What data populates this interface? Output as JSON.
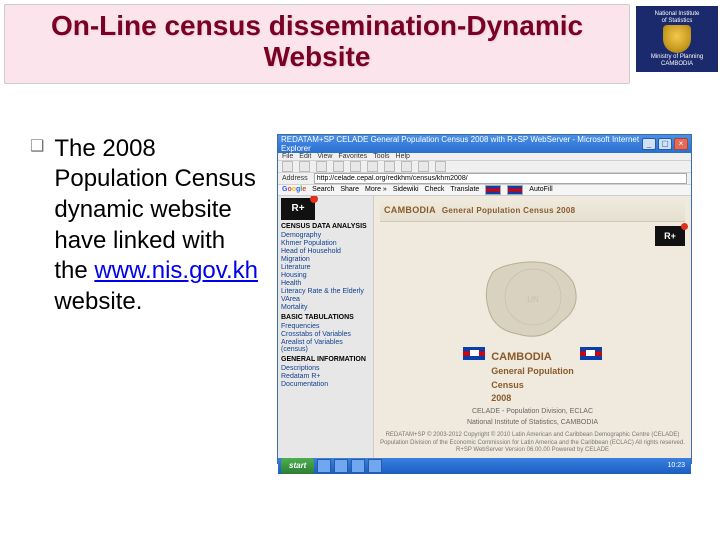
{
  "header": {
    "title": "On-Line census dissemination-Dynamic Website",
    "band_bg": "#fce4ec",
    "title_color": "#7a0026"
  },
  "badge": {
    "line1": "National Institute",
    "line2": "of Statistics",
    "line3": "Ministry of Planning",
    "line4": "CAMBODIA"
  },
  "bullet": {
    "marker": "❑",
    "text_before": "The 2008 Population Census dynamic website have linked with the ",
    "link_text": "www.nis.gov.kh",
    "text_after": " website."
  },
  "screenshot": {
    "window_title": "REDATAM+SP CELADE General Population Census 2008 with R+SP WebServer - Microsoft Internet Explorer",
    "menu": [
      "File",
      "Edit",
      "View",
      "Favorites",
      "Tools",
      "Help"
    ],
    "address_label": "Address",
    "address_value": "http://celade.cepal.org/redkhm/census/khm2008/",
    "google_toolbar": {
      "items": [
        "Search",
        "Share",
        "More »",
        "Sidewiki",
        "Check",
        "Translate",
        "AutoFill"
      ]
    },
    "sidebar": {
      "rlogo": "R+",
      "sections": [
        {
          "heading": "CENSUS DATA ANALYSIS",
          "items": [
            "Demography",
            "Khmer Population",
            "Head of Household",
            "Migration",
            "Literature",
            "Housing",
            "Health",
            "Literacy Rate & the Elderly",
            "VArea",
            "Mortality"
          ]
        },
        {
          "heading": "BASIC TABULATIONS",
          "items": [
            "Frequencies",
            "Crosstabs of Variables",
            "Arealist of Variables (census)"
          ]
        },
        {
          "heading": "GENERAL INFORMATION",
          "items": [
            "Descriptions",
            "Redatam R+",
            "Documentation"
          ]
        }
      ]
    },
    "banner": {
      "line1": "CAMBODIA",
      "line2": "General Population Census 2008"
    },
    "main_title": {
      "l1": "CAMBODIA",
      "l2": "General Population",
      "l3": "Census",
      "l4": "2008"
    },
    "subtitle1": "CELADE - Population Division, ECLAC",
    "subtitle2": "National Institute of Statistics, CAMBODIA",
    "footer_text": "REDATAM+SP © 2003-2012\nCopyright © 2010 Latin American and Caribbean Demographic Centre (CELADE)\nPopulation Division of the Economic Commission for Latin America and the Caribbean (ECLAC)\nAll rights reserved. R+SP WebServer Version 06.00.00\nPowered by CELADE",
    "taskbar": {
      "start": "start",
      "clock": "10:23"
    },
    "colors": {
      "titlebar": "#2a6fd0",
      "body_bg": "#efeadd",
      "sidebar_bg": "#e7e7e7",
      "heading_color": "#8a5a2a"
    }
  }
}
